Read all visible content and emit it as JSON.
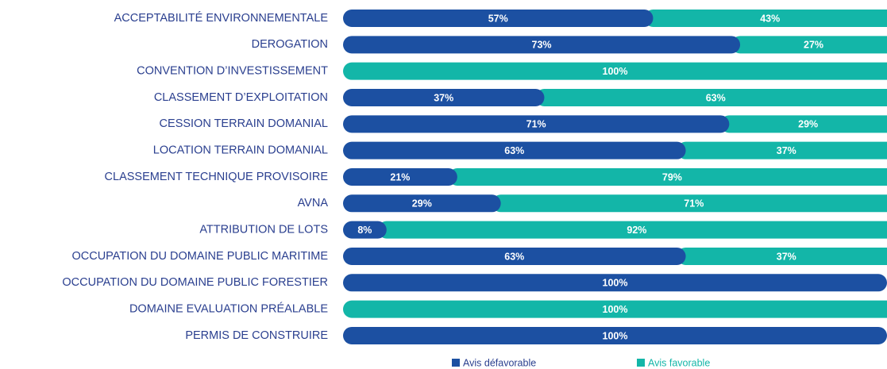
{
  "chart_data": {
    "type": "stacked-bar-horizontal",
    "categories": [
      "ACCEPTABILITÉ ENVIRONNEMENTALE",
      "DEROGATION",
      "CONVENTION D’INVESTISSEMENT",
      "CLASSEMENT D’EXPLOITATION",
      "CESSION TERRAIN DOMANIAL",
      "LOCATION TERRAIN DOMANIAL",
      "CLASSEMENT TECHNIQUE PROVISOIRE",
      "AVNA",
      "ATTRIBUTION DE LOTS",
      "OCCUPATION DU DOMAINE PUBLIC MARITIME",
      "OCCUPATION DU DOMAINE PUBLIC FORESTIER",
      "DOMAINE EVALUATION PRÉALABLE",
      "PERMIS DE CONSTRUIRE"
    ],
    "series": [
      {
        "name": "Avis défavorable",
        "color": "#1c50a2",
        "values": [
          57,
          73,
          0,
          37,
          71,
          63,
          21,
          29,
          8,
          63,
          100,
          0,
          100
        ],
        "value_labels": [
          "57%",
          "73%",
          null,
          "37%",
          "71%",
          "63%",
          "21%",
          "29%",
          "8%",
          "63%",
          "100%",
          null,
          "100%"
        ]
      },
      {
        "name": "Avis favorable",
        "color": "#13b6a8",
        "values": [
          43,
          27,
          100,
          63,
          29,
          37,
          79,
          71,
          92,
          37,
          0,
          100,
          0
        ],
        "value_labels": [
          "43%",
          "27%",
          "100%",
          "63%",
          "29%",
          "37%",
          "79%",
          "71%",
          "92%",
          "37%",
          null,
          "100%",
          null
        ]
      }
    ],
    "xlim": [
      0,
      100
    ]
  }
}
